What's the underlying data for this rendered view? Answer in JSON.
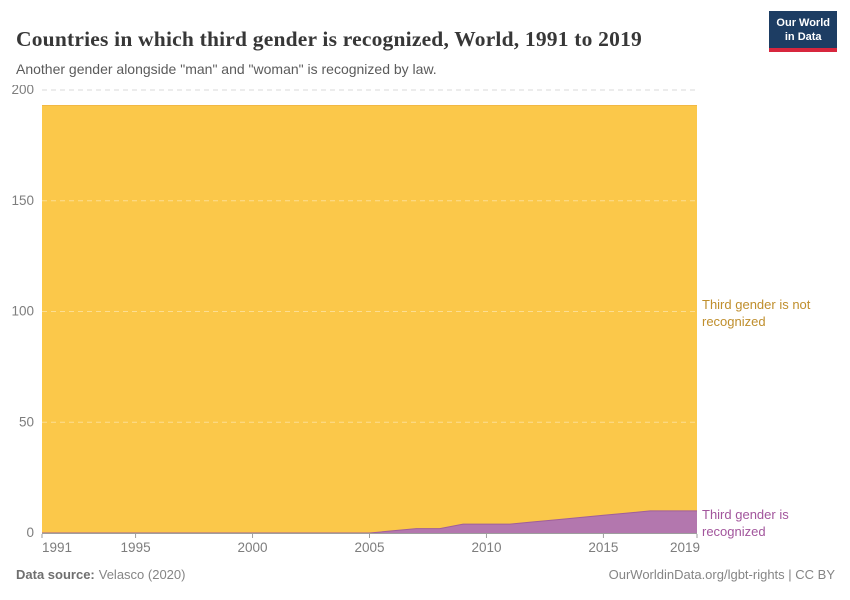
{
  "header": {
    "title": "Countries in which third gender is recognized, World, 1991 to 2019",
    "subtitle": "Another gender alongside \"man\" and \"woman\" is recognized by law.",
    "logo": {
      "line1": "Our World",
      "line2": "in Data",
      "bg_color": "#1d3d63",
      "accent_color": "#d7263d"
    }
  },
  "chart_data": {
    "type": "area",
    "stacked": true,
    "title": "Countries in which third gender is recognized, World, 1991 to 2019",
    "xlabel": "",
    "ylabel": "",
    "xlim": [
      1991,
      2019
    ],
    "ylim": [
      0,
      200
    ],
    "xticks": [
      1991,
      1995,
      2000,
      2005,
      2010,
      2015,
      2019
    ],
    "yticks": [
      0,
      50,
      100,
      150,
      200
    ],
    "grid": "horizontal-dashed",
    "legend_position": "labels-right-of-plot",
    "x": [
      1991,
      1992,
      1993,
      1994,
      1995,
      1996,
      1997,
      1998,
      1999,
      2000,
      2001,
      2002,
      2003,
      2004,
      2005,
      2006,
      2007,
      2008,
      2009,
      2010,
      2011,
      2012,
      2013,
      2014,
      2015,
      2016,
      2017,
      2018,
      2019
    ],
    "series": [
      {
        "name": "Third gender is recognized",
        "color": "#b377ae",
        "edge_color": "#9f5f9b",
        "label_color": "#a2559c",
        "values": [
          0,
          0,
          0,
          0,
          0,
          0,
          0,
          0,
          0,
          0,
          0,
          0,
          0,
          0,
          0,
          1,
          2,
          2,
          4,
          4,
          4,
          5,
          6,
          7,
          8,
          9,
          10,
          10,
          10
        ]
      },
      {
        "name": "Third gender is not recognized",
        "color": "#fbc84a",
        "edge_color": "#f2b843",
        "label_color": "#bf8e2c",
        "values": [
          193,
          193,
          193,
          193,
          193,
          193,
          193,
          193,
          193,
          193,
          193,
          193,
          193,
          193,
          193,
          192,
          191,
          191,
          189,
          189,
          189,
          188,
          187,
          186,
          185,
          184,
          183,
          183,
          183
        ]
      }
    ],
    "axis_colors": {
      "tick_label": "#7d7d7d",
      "axis_line": "#9e9e9e",
      "gridline": "#d9d9d9"
    }
  },
  "labels": {
    "not_recognized": "Third gender is not recognized",
    "recognized": "Third gender is recognized"
  },
  "footer": {
    "source_label": "Data source:",
    "source_value": "Velasco (2020)",
    "right_text": "OurWorldinData.org/lgbt-rights | CC BY"
  }
}
